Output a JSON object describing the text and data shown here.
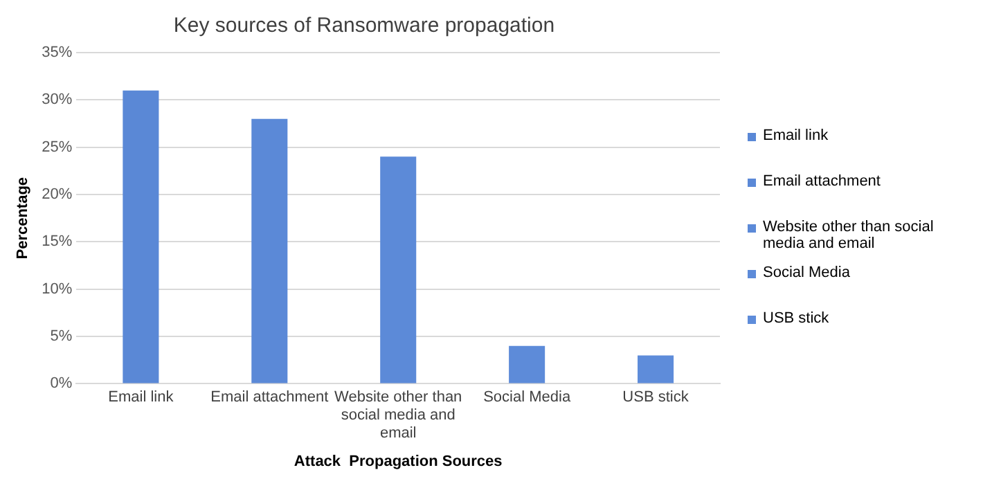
{
  "chart_data": {
    "type": "bar",
    "title": "Key sources of Ransomware propagation",
    "xlabel": "Attack  Propagation Sources",
    "ylabel": "Percentage",
    "categories": [
      "Email link",
      "Email attachment",
      "Website other than social media and email",
      "Social Media",
      "USB stick"
    ],
    "stacked": true,
    "series": [
      {
        "name": "Email link",
        "color": "#5a88d6",
        "values": [
          31,
          null,
          null,
          null,
          null
        ]
      },
      {
        "name": "Email attachment",
        "color": "#5b89d7",
        "values": [
          null,
          28,
          null,
          null,
          null
        ]
      },
      {
        "name": "Website other than social media and email",
        "color": "#5c8ad8",
        "values": [
          null,
          null,
          24,
          null,
          null
        ]
      },
      {
        "name": "Social Media",
        "color": "#5d8bd9",
        "values": [
          null,
          null,
          null,
          4,
          null
        ]
      },
      {
        "name": "USB stick",
        "color": "#5e8cda",
        "values": [
          null,
          null,
          null,
          null,
          3
        ]
      }
    ],
    "ylim": [
      0,
      35
    ],
    "yticks": [
      {
        "value": 0,
        "label": "0%"
      },
      {
        "value": 5,
        "label": "5%"
      },
      {
        "value": 10,
        "label": "10%"
      },
      {
        "value": 15,
        "label": "15%"
      },
      {
        "value": 20,
        "label": "20%"
      },
      {
        "value": 25,
        "label": "25%"
      },
      {
        "value": 30,
        "label": "30%"
      },
      {
        "value": 35,
        "label": "35%"
      }
    ],
    "grid": "y",
    "legend": "right"
  }
}
